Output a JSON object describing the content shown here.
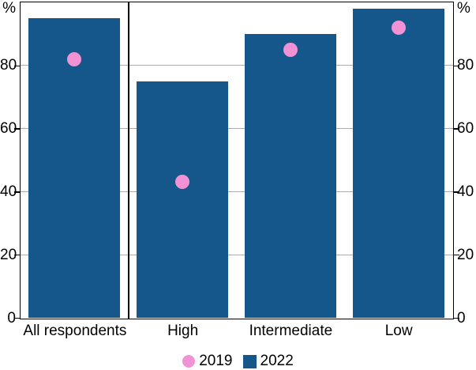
{
  "chart_data": {
    "type": "bar",
    "subtype": "bar-with-scatter-overlay",
    "title": "",
    "categories": [
      "All respondents",
      "High",
      "Intermediate",
      "Low"
    ],
    "series": [
      {
        "name": "2019",
        "type": "scatter",
        "marker": "circle",
        "color": "#F092D3",
        "values": [
          82,
          43,
          85,
          92
        ]
      },
      {
        "name": "2022",
        "type": "bar",
        "marker": "square",
        "color": "#15578A",
        "values": [
          95,
          75,
          90,
          98
        ]
      }
    ],
    "xlabel": "",
    "ylabel_left": "%",
    "ylabel_right": "%",
    "ylim": [
      0,
      100
    ],
    "yticks": [
      0,
      20,
      40,
      60,
      80
    ],
    "ytick_labels": [
      "0",
      "20",
      "40",
      "60",
      "80"
    ],
    "grid": true,
    "gridline_color": "#ABABAB",
    "axis_color": "#000000",
    "background_color": "#FFFFFF",
    "panel_divider_after_category_index": 0,
    "legend_position": "bottom-center"
  }
}
